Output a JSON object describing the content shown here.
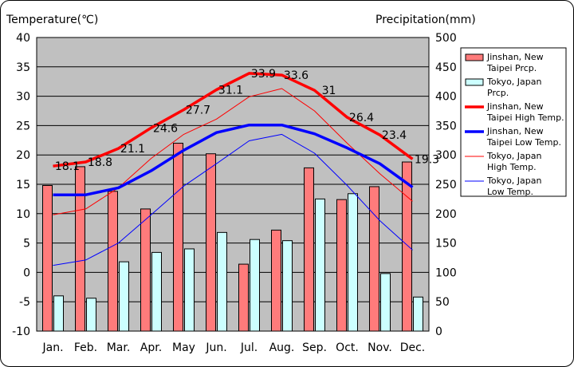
{
  "chart_data": {
    "type": "bar+line",
    "left_axis_label": "Temperature(℃)",
    "right_axis_label": "Precipitation(mm)",
    "categories": [
      "Jan.",
      "Feb.",
      "Mar.",
      "Apr.",
      "May",
      "Jun.",
      "Jul.",
      "Aug.",
      "Sep.",
      "Oct.",
      "Nov.",
      "Dec."
    ],
    "left_ylim": [
      -10,
      40
    ],
    "left_ticks": [
      40,
      35,
      30,
      25,
      20,
      15,
      10,
      5,
      0,
      -5,
      -10
    ],
    "right_ylim": [
      0,
      500
    ],
    "right_ticks": [
      500,
      450,
      400,
      350,
      300,
      250,
      200,
      150,
      100,
      50,
      0
    ],
    "grid": true,
    "legend_position": "right",
    "bar_series": [
      {
        "name": "Jinshan, New Taipei Prcp.",
        "legend_lines": [
          "Jinshan, New",
          "Taipei Prcp."
        ],
        "color": "#ff7b7b",
        "values": [
          248,
          280,
          238,
          208,
          320,
          302,
          114,
          172,
          278,
          224,
          246,
          288
        ]
      },
      {
        "name": "Tokyo, Japan Prcp.",
        "legend_lines": [
          "Tokyo, Japan",
          "Prcp."
        ],
        "color": "#ccffff",
        "values": [
          60,
          56,
          118,
          134,
          140,
          168,
          156,
          154,
          225,
          234,
          98,
          58
        ]
      }
    ],
    "line_series": [
      {
        "name": "Jinshan, New Taipei High Temp.",
        "legend_lines": [
          "Jinshan, New",
          "Taipei High Temp."
        ],
        "color": "#ff0000",
        "width": 3.5,
        "values": [
          18.1,
          18.8,
          21.1,
          24.6,
          27.7,
          31.1,
          33.9,
          33.6,
          31,
          26.4,
          23.4,
          19.3
        ],
        "labels": [
          "18.1",
          "18.8",
          "21.1",
          "24.6",
          "27.7",
          "31.1",
          "33.9",
          "33.6",
          "31",
          "26.4",
          "23.4",
          "19.3"
        ]
      },
      {
        "name": "Jinshan, New Taipei Low Temp.",
        "legend_lines": [
          "Jinshan, New",
          "Taipei Low Temp."
        ],
        "color": "#0000ff",
        "width": 3.5,
        "values": [
          13.2,
          13.2,
          14.4,
          17.3,
          20.8,
          23.8,
          25.1,
          25.1,
          23.6,
          21.2,
          18.5,
          14.5
        ]
      },
      {
        "name": "Tokyo, Japan High Temp.",
        "legend_lines": [
          "Tokyo, Japan",
          "High Temp."
        ],
        "color": "#ff0000",
        "width": 1,
        "values": [
          9.8,
          10.8,
          14.4,
          19.4,
          23.5,
          26.1,
          29.9,
          31.3,
          27.5,
          22.0,
          16.8,
          12.1
        ]
      },
      {
        "name": "Tokyo, Japan Low Temp.",
        "legend_lines": [
          "Tokyo, Japan",
          "Low Temp."
        ],
        "color": "#0000ff",
        "width": 1,
        "values": [
          1.2,
          2.1,
          5.0,
          9.8,
          14.7,
          18.5,
          22.4,
          23.5,
          20.3,
          14.8,
          8.8,
          3.8
        ]
      }
    ]
  }
}
